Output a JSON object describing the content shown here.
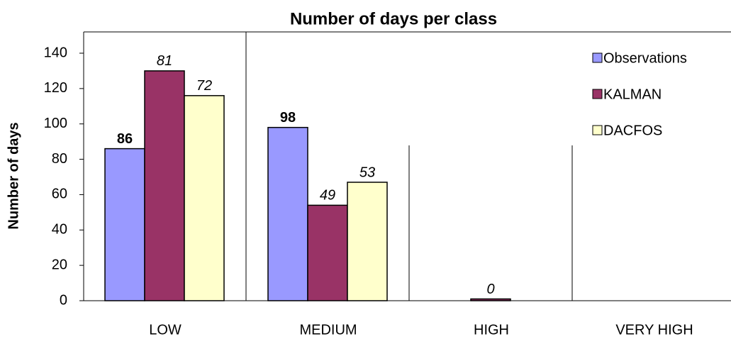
{
  "chart_data": {
    "type": "bar",
    "title": "Number of days per class",
    "y_label": "Number of days",
    "categories": [
      "LOW",
      "MEDIUM",
      "HIGH",
      "VERY HIGH"
    ],
    "series": [
      {
        "name": "Observations",
        "color": "#9999ff",
        "values": [
          86,
          98,
          0,
          0
        ],
        "labels": [
          "86",
          "98",
          null,
          null
        ],
        "label_style": "bold"
      },
      {
        "name": "KALMAN",
        "color": "#993366",
        "values": [
          130,
          54,
          1,
          0
        ],
        "labels": [
          "81",
          "49",
          "0",
          null
        ],
        "label_style": "italic"
      },
      {
        "name": "DACFOS",
        "color": "#ffffcc",
        "values": [
          116,
          67,
          0,
          0
        ],
        "labels": [
          "72",
          "53",
          null,
          null
        ],
        "label_style": "italic"
      }
    ],
    "ylim": [
      0,
      140
    ],
    "yticks": [
      0,
      20,
      40,
      60,
      80,
      100,
      120,
      140
    ],
    "grid": false,
    "legend": "top-right"
  }
}
